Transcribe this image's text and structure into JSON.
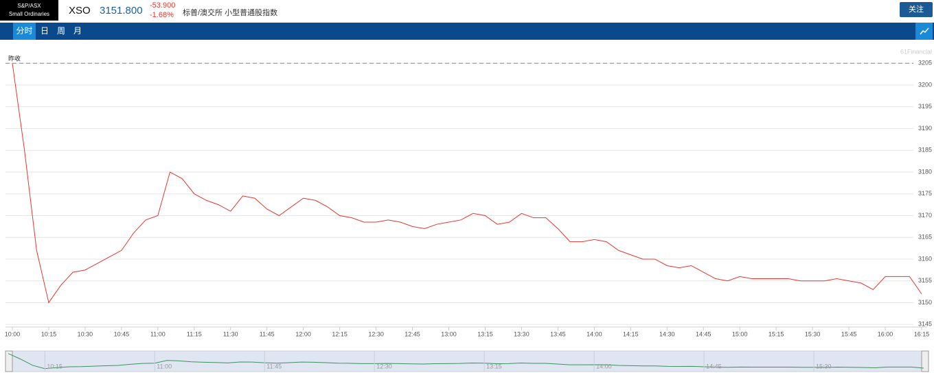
{
  "header": {
    "logo_line1": "S&P/ASX",
    "logo_line2": "Small Ordinaries",
    "symbol": "XSO",
    "price": "3151.800",
    "change": "-53.900",
    "change_pct": "-1.68%",
    "name": "标普/澳交所 小型普通股指数",
    "follow": "关注"
  },
  "tabs": [
    "分时",
    "日",
    "周",
    "月"
  ],
  "chart_data": {
    "type": "line",
    "watermark": "61Financial",
    "color": "#e8352f",
    "x": [
      "10:00",
      "10:05",
      "10:10",
      "10:15",
      "10:20",
      "10:25",
      "10:30",
      "10:35",
      "10:40",
      "10:45",
      "10:50",
      "10:55",
      "11:00",
      "11:05",
      "11:10",
      "11:15",
      "11:20",
      "11:25",
      "11:30",
      "11:35",
      "11:40",
      "11:45",
      "11:50",
      "11:55",
      "12:00",
      "12:05",
      "12:10",
      "12:15",
      "12:20",
      "12:25",
      "12:30",
      "12:35",
      "12:40",
      "12:45",
      "12:50",
      "12:55",
      "13:00",
      "13:05",
      "13:10",
      "13:15",
      "13:20",
      "13:25",
      "13:30",
      "13:35",
      "13:40",
      "13:45",
      "13:50",
      "13:55",
      "14:00",
      "14:05",
      "14:10",
      "14:15",
      "14:20",
      "14:25",
      "14:30",
      "14:35",
      "14:40",
      "14:45",
      "14:50",
      "14:55",
      "15:00",
      "15:05",
      "15:10",
      "15:15",
      "15:20",
      "15:25",
      "15:30",
      "15:35",
      "15:40",
      "15:45",
      "15:50",
      "15:55",
      "16:00",
      "16:05",
      "16:10",
      "16:15"
    ],
    "values": [
      3205,
      3185,
      3162,
      3150,
      3154,
      3157,
      3157.5,
      3159,
      3160.5,
      3162,
      3166,
      3169,
      3170,
      3180,
      3178.5,
      3175,
      3173.5,
      3172.5,
      3171,
      3174.5,
      3174,
      3171.5,
      3170,
      3172,
      3174,
      3173.5,
      3172,
      3170,
      3169.5,
      3168.5,
      3168.5,
      3169,
      3168.5,
      3167.5,
      3167,
      3168,
      3168.5,
      3169,
      3170.5,
      3170,
      3168,
      3168.5,
      3170.5,
      3169.5,
      3169.5,
      3167,
      3164,
      3164,
      3164.5,
      3164,
      3162,
      3161,
      3160,
      3160,
      3158.5,
      3158,
      3158.5,
      3157,
      3155.5,
      3155,
      3156,
      3155.5,
      3155.5,
      3155.5,
      3155.5,
      3155,
      3155,
      3155,
      3155.5,
      3155,
      3154.5,
      3153,
      3156,
      3156,
      3156,
      3152
    ],
    "ylim": [
      3144.4,
      3209.3
    ],
    "yticks": [
      3145,
      3150,
      3155,
      3160,
      3165,
      3170,
      3175,
      3180,
      3185,
      3190,
      3195,
      3200,
      3205
    ],
    "xticks": [
      "10:00",
      "10:15",
      "10:30",
      "10:45",
      "11:00",
      "11:15",
      "11:30",
      "11:45",
      "12:00",
      "12:15",
      "12:30",
      "12:45",
      "13:00",
      "13:15",
      "13:30",
      "13:45",
      "14:00",
      "14:15",
      "14:30",
      "14:45",
      "15:00",
      "15:15",
      "15:30",
      "15:45",
      "16:00",
      "16:15"
    ],
    "prev_close": {
      "label": "昨收",
      "value": 3205
    },
    "grid": true,
    "navigator_ticks": [
      "10:15",
      "11:00",
      "11:45",
      "12:30",
      "13:15",
      "14:00",
      "14:45",
      "15:30"
    ]
  }
}
